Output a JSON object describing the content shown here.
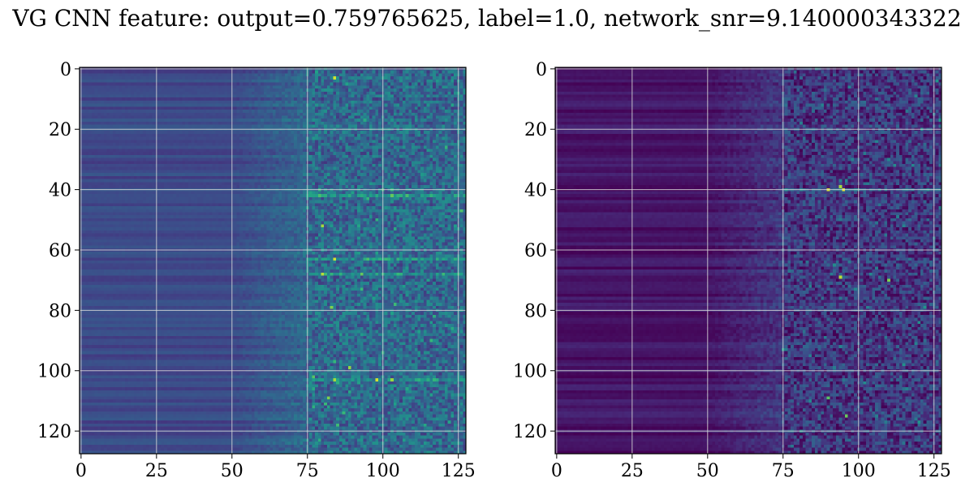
{
  "figure": {
    "title": "VG CNN feature: output=0.759765625, label=1.0, network_snr=9.140000343322"
  },
  "chart_data": [
    {
      "type": "heatmap",
      "name": "",
      "shape": [
        128,
        128
      ],
      "colormap": "viridis",
      "grid": true,
      "xlim": [
        -0.5,
        127.5
      ],
      "ylim": [
        127.5,
        -0.5
      ],
      "xticks": [
        0,
        25,
        50,
        75,
        100,
        125
      ],
      "yticks": [
        0,
        20,
        40,
        60,
        80,
        100,
        120
      ],
      "xtick_labels": [
        "0",
        "25",
        "50",
        "75",
        "100",
        "125"
      ],
      "ytick_labels": [
        "0",
        "20",
        "40",
        "60",
        "80",
        "100",
        "120"
      ],
      "value_range": [
        0,
        1
      ],
      "low_region_columns": [
        0,
        50
      ],
      "mid_region_columns": [
        50,
        75
      ],
      "high_region_columns": [
        75,
        127
      ],
      "low_region_level": 0.25,
      "high_region_level": 0.38,
      "bright_spots": [
        {
          "row": 3,
          "col": 84,
          "value": 0.95
        },
        {
          "row": 52,
          "col": 80,
          "value": 0.9
        },
        {
          "row": 63,
          "col": 84,
          "value": 0.95
        },
        {
          "row": 68,
          "col": 80,
          "value": 0.92
        },
        {
          "row": 79,
          "col": 83,
          "value": 0.85
        },
        {
          "row": 99,
          "col": 89,
          "value": 0.88
        },
        {
          "row": 103,
          "col": 84,
          "value": 0.9
        },
        {
          "row": 103,
          "col": 98,
          "value": 0.95
        },
        {
          "row": 109,
          "col": 82,
          "value": 0.85
        }
      ],
      "bright_rows": [
        42,
        63,
        68,
        103
      ]
    },
    {
      "type": "heatmap",
      "name": "",
      "shape": [
        128,
        128
      ],
      "colormap": "viridis",
      "grid": true,
      "xlim": [
        -0.5,
        127.5
      ],
      "ylim": [
        127.5,
        -0.5
      ],
      "xticks": [
        0,
        25,
        50,
        75,
        100,
        125
      ],
      "yticks": [
        0,
        20,
        40,
        60,
        80,
        100,
        120
      ],
      "xtick_labels": [
        "0",
        "25",
        "50",
        "75",
        "100",
        "125"
      ],
      "ytick_labels": [
        "0",
        "20",
        "40",
        "60",
        "80",
        "100",
        "120"
      ],
      "value_range": [
        0,
        1
      ],
      "low_region_columns": [
        0,
        50
      ],
      "mid_region_columns": [
        50,
        75
      ],
      "high_region_columns": [
        75,
        127
      ],
      "low_region_level": 0.06,
      "high_region_level": 0.18,
      "bright_spots": [
        {
          "row": 40,
          "col": 90,
          "value": 0.95
        },
        {
          "row": 40,
          "col": 95,
          "value": 0.98
        },
        {
          "row": 39,
          "col": 94,
          "value": 0.9
        },
        {
          "row": 69,
          "col": 94,
          "value": 0.92
        },
        {
          "row": 70,
          "col": 110,
          "value": 0.85
        },
        {
          "row": 109,
          "col": 90,
          "value": 0.8
        },
        {
          "row": 115,
          "col": 96,
          "value": 0.82
        }
      ],
      "bright_rows": [
        40
      ]
    }
  ]
}
